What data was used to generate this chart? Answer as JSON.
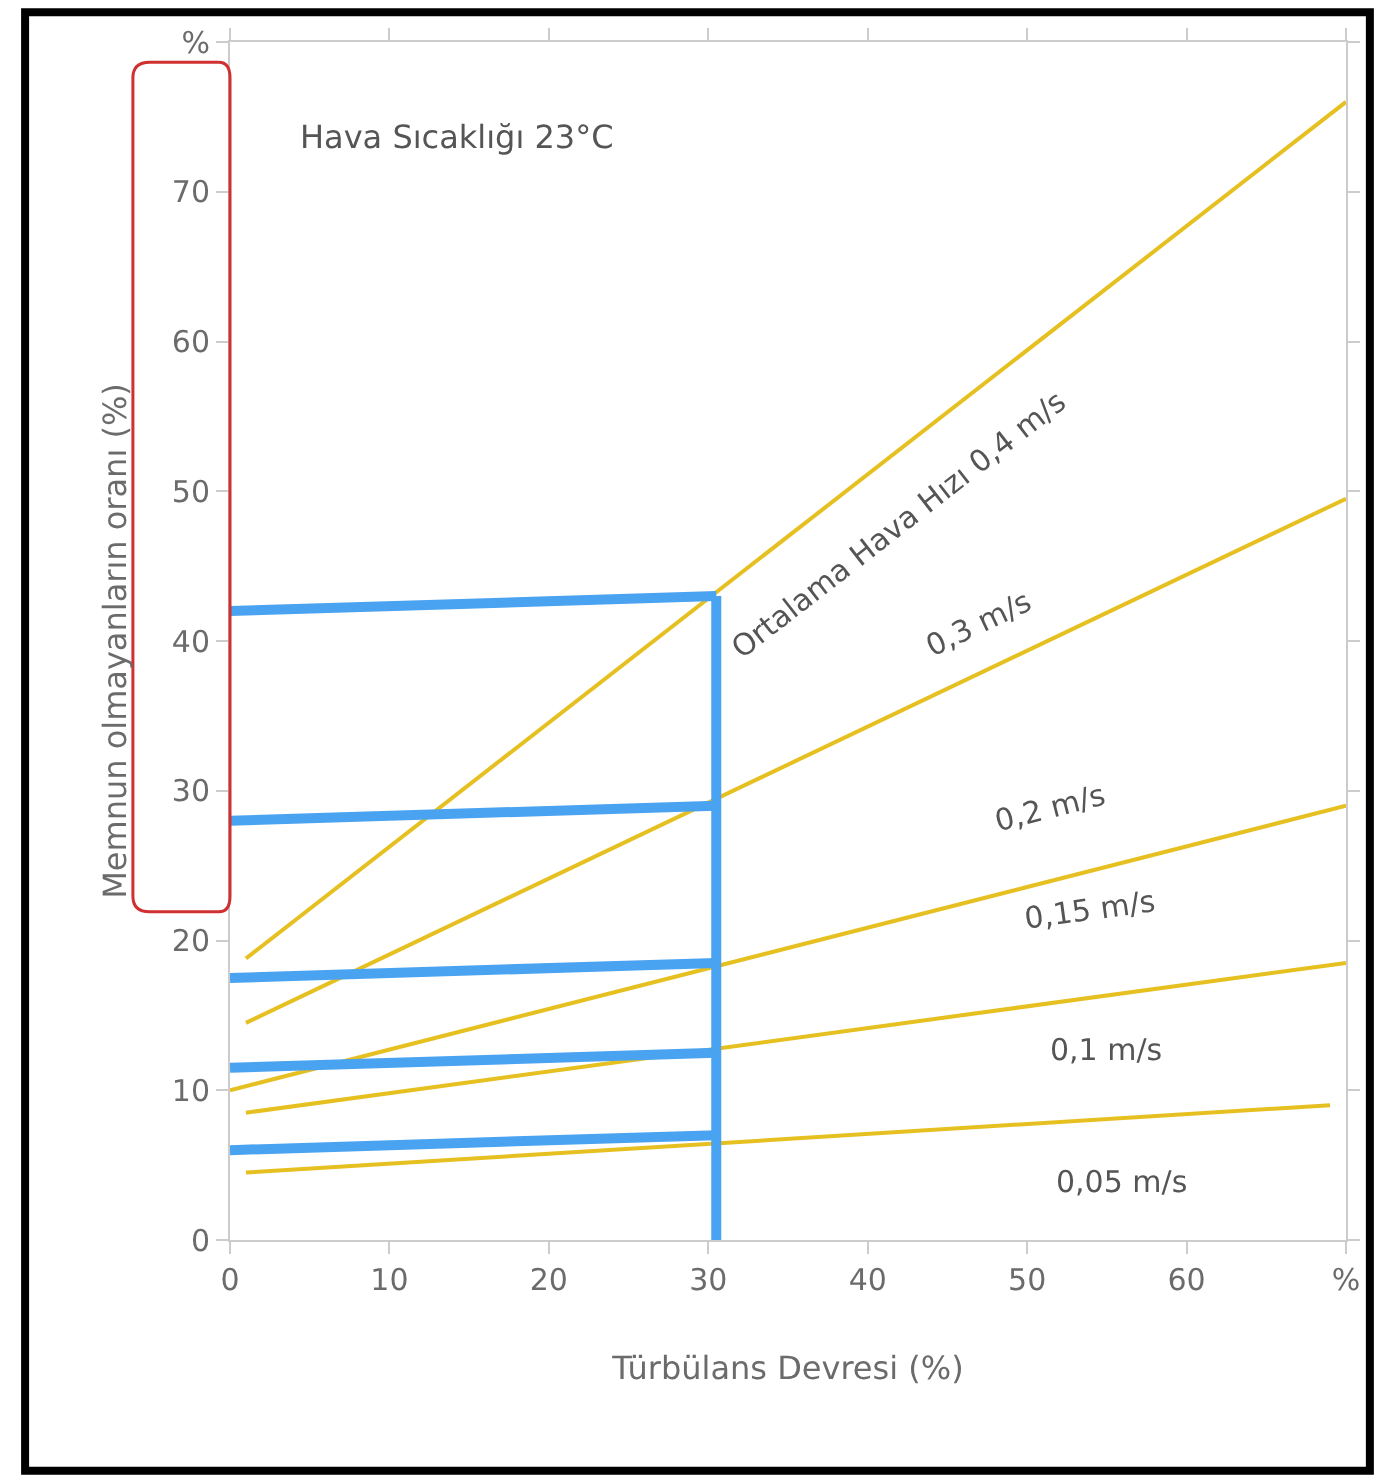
{
  "chart_data": {
    "type": "line",
    "xlabel": "Türbülans Devresi (%)",
    "ylabel": "Memnun olmayanların oranı (%)",
    "xlim": [
      0,
      70
    ],
    "ylim": [
      0,
      80
    ],
    "xticks": [
      0,
      10,
      20,
      30,
      40,
      50,
      60,
      {
        "value": 70,
        "label": "%"
      }
    ],
    "yticks": [
      0,
      10,
      20,
      30,
      40,
      50,
      60,
      70,
      {
        "value": 80,
        "label": "%"
      }
    ],
    "marker": "none",
    "line_style": "solid",
    "series": [
      {
        "color": "#e6c020",
        "x": [
          1,
          70
        ],
        "values": [
          18.8,
          76
        ]
      },
      {
        "color": "#e6c020",
        "x": [
          1,
          70
        ],
        "values": [
          14.5,
          49.5
        ]
      },
      {
        "color": "#e6c020",
        "x": [
          0,
          70
        ],
        "values": [
          10,
          29
        ]
      },
      {
        "color": "#e6c020",
        "x": [
          1,
          70
        ],
        "values": [
          8.5,
          18.5
        ]
      },
      {
        "color": "#e6c020",
        "x": [
          1,
          69
        ],
        "values": [
          4.5,
          9
        ]
      },
      {
        "color": "#4aa3f0",
        "x": [
          0,
          30.5
        ],
        "values": [
          42,
          43
        ]
      },
      {
        "color": "#4aa3f0",
        "x": [
          0,
          30.5
        ],
        "values": [
          28,
          29
        ]
      },
      {
        "color": "#4aa3f0",
        "x": [
          0,
          30.5
        ],
        "values": [
          17.5,
          18.5
        ]
      },
      {
        "color": "#4aa3f0",
        "x": [
          0,
          30.5
        ],
        "values": [
          11.5,
          12.5
        ]
      },
      {
        "color": "#4aa3f0",
        "x": [
          0,
          30.5
        ],
        "values": [
          6,
          7
        ]
      },
      {
        "color": "#4aa3f0",
        "x": [
          30.5,
          30.5
        ],
        "values": [
          0,
          43
        ]
      }
    ],
    "annotations": [
      "Hava Sıcaklığı 23°C",
      "Ortalama Hava Hızı 0,4 m/s",
      "0,3 m/s",
      "0,2 m/s",
      "0,15 m/s",
      "0,1 m/s",
      "0,05 m/s"
    ]
  }
}
